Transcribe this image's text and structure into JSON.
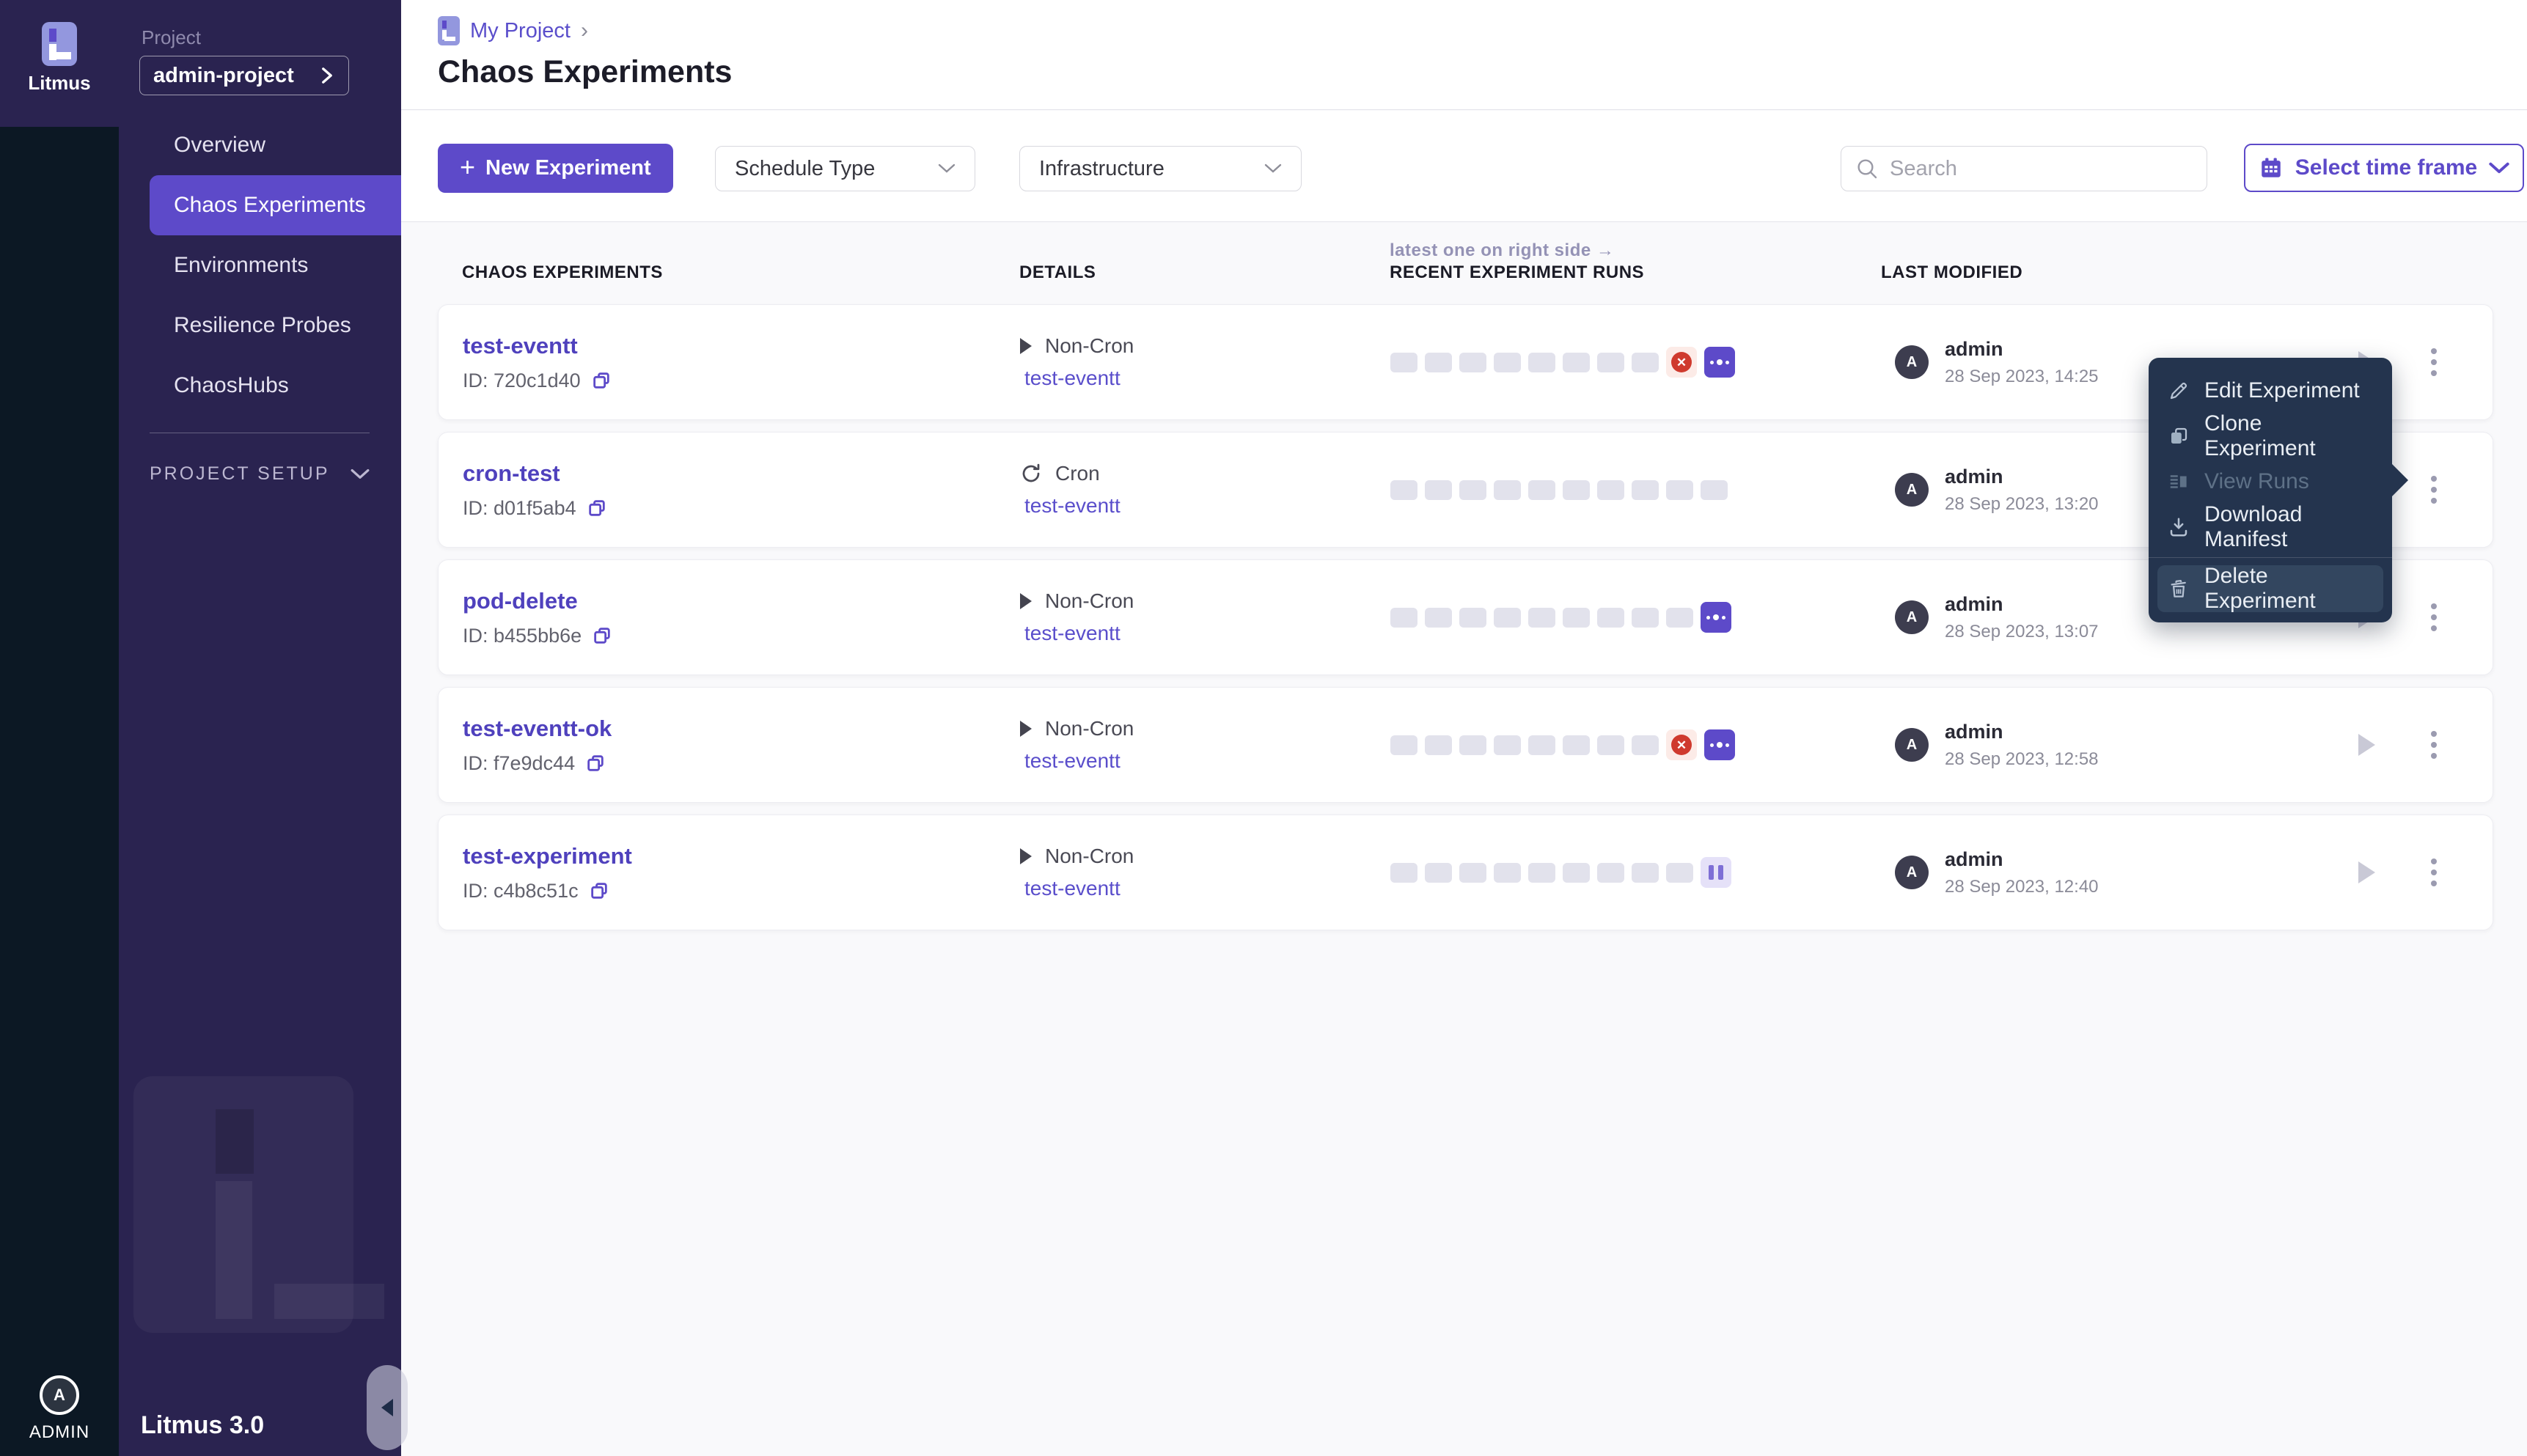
{
  "brand": {
    "name": "Litmus",
    "version": "Litmus 3.0",
    "admin": "ADMIN",
    "avatar_initial": "A"
  },
  "sidebar": {
    "project_label": "Project",
    "project_name": "admin-project",
    "section_label": "PROJECT SETUP",
    "items": [
      {
        "label": "Overview"
      },
      {
        "label": "Chaos Experiments"
      },
      {
        "label": "Environments"
      },
      {
        "label": "Resilience Probes"
      },
      {
        "label": "ChaosHubs"
      }
    ]
  },
  "header": {
    "breadcrumb": "My Project",
    "chevron": "›",
    "title": "Chaos Experiments"
  },
  "toolbar": {
    "plus": "+",
    "new_experiment": "New Experiment",
    "schedule_type": "Schedule Type",
    "infrastructure": "Infrastructure",
    "search_placeholder": "Search",
    "time_frame": "Select time frame"
  },
  "table": {
    "columns": [
      "CHAOS EXPERIMENTS",
      "DETAILS",
      "RECENT EXPERIMENT RUNS",
      "LAST MODIFIED"
    ],
    "runs_note": "latest one on right side →",
    "rows": [
      {
        "name": "test-eventt",
        "id_label": "ID: 720c1d40",
        "schedule": "Non-Cron",
        "link": "test-eventt",
        "avatar_initial": "A",
        "modified_by": "admin",
        "modified_at": "28 Sep 2023, 14:25",
        "runs": [
          "placeholder",
          "placeholder",
          "placeholder",
          "placeholder",
          "placeholder",
          "placeholder",
          "placeholder",
          "placeholder",
          "failed",
          "running"
        ]
      },
      {
        "name": "cron-test",
        "id_label": "ID: d01f5ab4",
        "schedule": "Cron",
        "link": "test-eventt",
        "avatar_initial": "A",
        "modified_by": "admin",
        "modified_at": "28 Sep 2023, 13:20",
        "runs": [
          "placeholder",
          "placeholder",
          "placeholder",
          "placeholder",
          "placeholder",
          "placeholder",
          "placeholder",
          "placeholder",
          "placeholder",
          "placeholder"
        ]
      },
      {
        "name": "pod-delete",
        "id_label": "ID: b455bb6e",
        "schedule": "Non-Cron",
        "link": "test-eventt",
        "avatar_initial": "A",
        "modified_by": "admin",
        "modified_at": "28 Sep 2023, 13:07",
        "runs": [
          "placeholder",
          "placeholder",
          "placeholder",
          "placeholder",
          "placeholder",
          "placeholder",
          "placeholder",
          "placeholder",
          "placeholder",
          "running"
        ]
      },
      {
        "name": "test-eventt-ok",
        "id_label": "ID: f7e9dc44",
        "schedule": "Non-Cron",
        "link": "test-eventt",
        "avatar_initial": "A",
        "modified_by": "admin",
        "modified_at": "28 Sep 2023, 12:58",
        "runs": [
          "placeholder",
          "placeholder",
          "placeholder",
          "placeholder",
          "placeholder",
          "placeholder",
          "placeholder",
          "placeholder",
          "failed",
          "running"
        ]
      },
      {
        "name": "test-experiment",
        "id_label": "ID: c4b8c51c",
        "schedule": "Non-Cron",
        "link": "test-eventt",
        "avatar_initial": "A",
        "modified_by": "admin",
        "modified_at": "28 Sep 2023, 12:40",
        "runs": [
          "placeholder",
          "placeholder",
          "placeholder",
          "placeholder",
          "placeholder",
          "placeholder",
          "placeholder",
          "placeholder",
          "placeholder",
          "paused"
        ]
      }
    ]
  },
  "context_menu": {
    "items": [
      {
        "label": "Edit Experiment"
      },
      {
        "label": "Clone Experiment"
      },
      {
        "label": "View Runs",
        "disabled": true
      },
      {
        "label": "Download Manifest"
      },
      {
        "label": "Delete Experiment"
      }
    ]
  },
  "colors": {
    "accent": "#5d4ac9",
    "sidebar_bg": "#2a2350",
    "rail_bg": "#0c1824",
    "menu_bg": "#24344e",
    "failed": "#cf3a2e",
    "paused": "#7e6fd6"
  }
}
